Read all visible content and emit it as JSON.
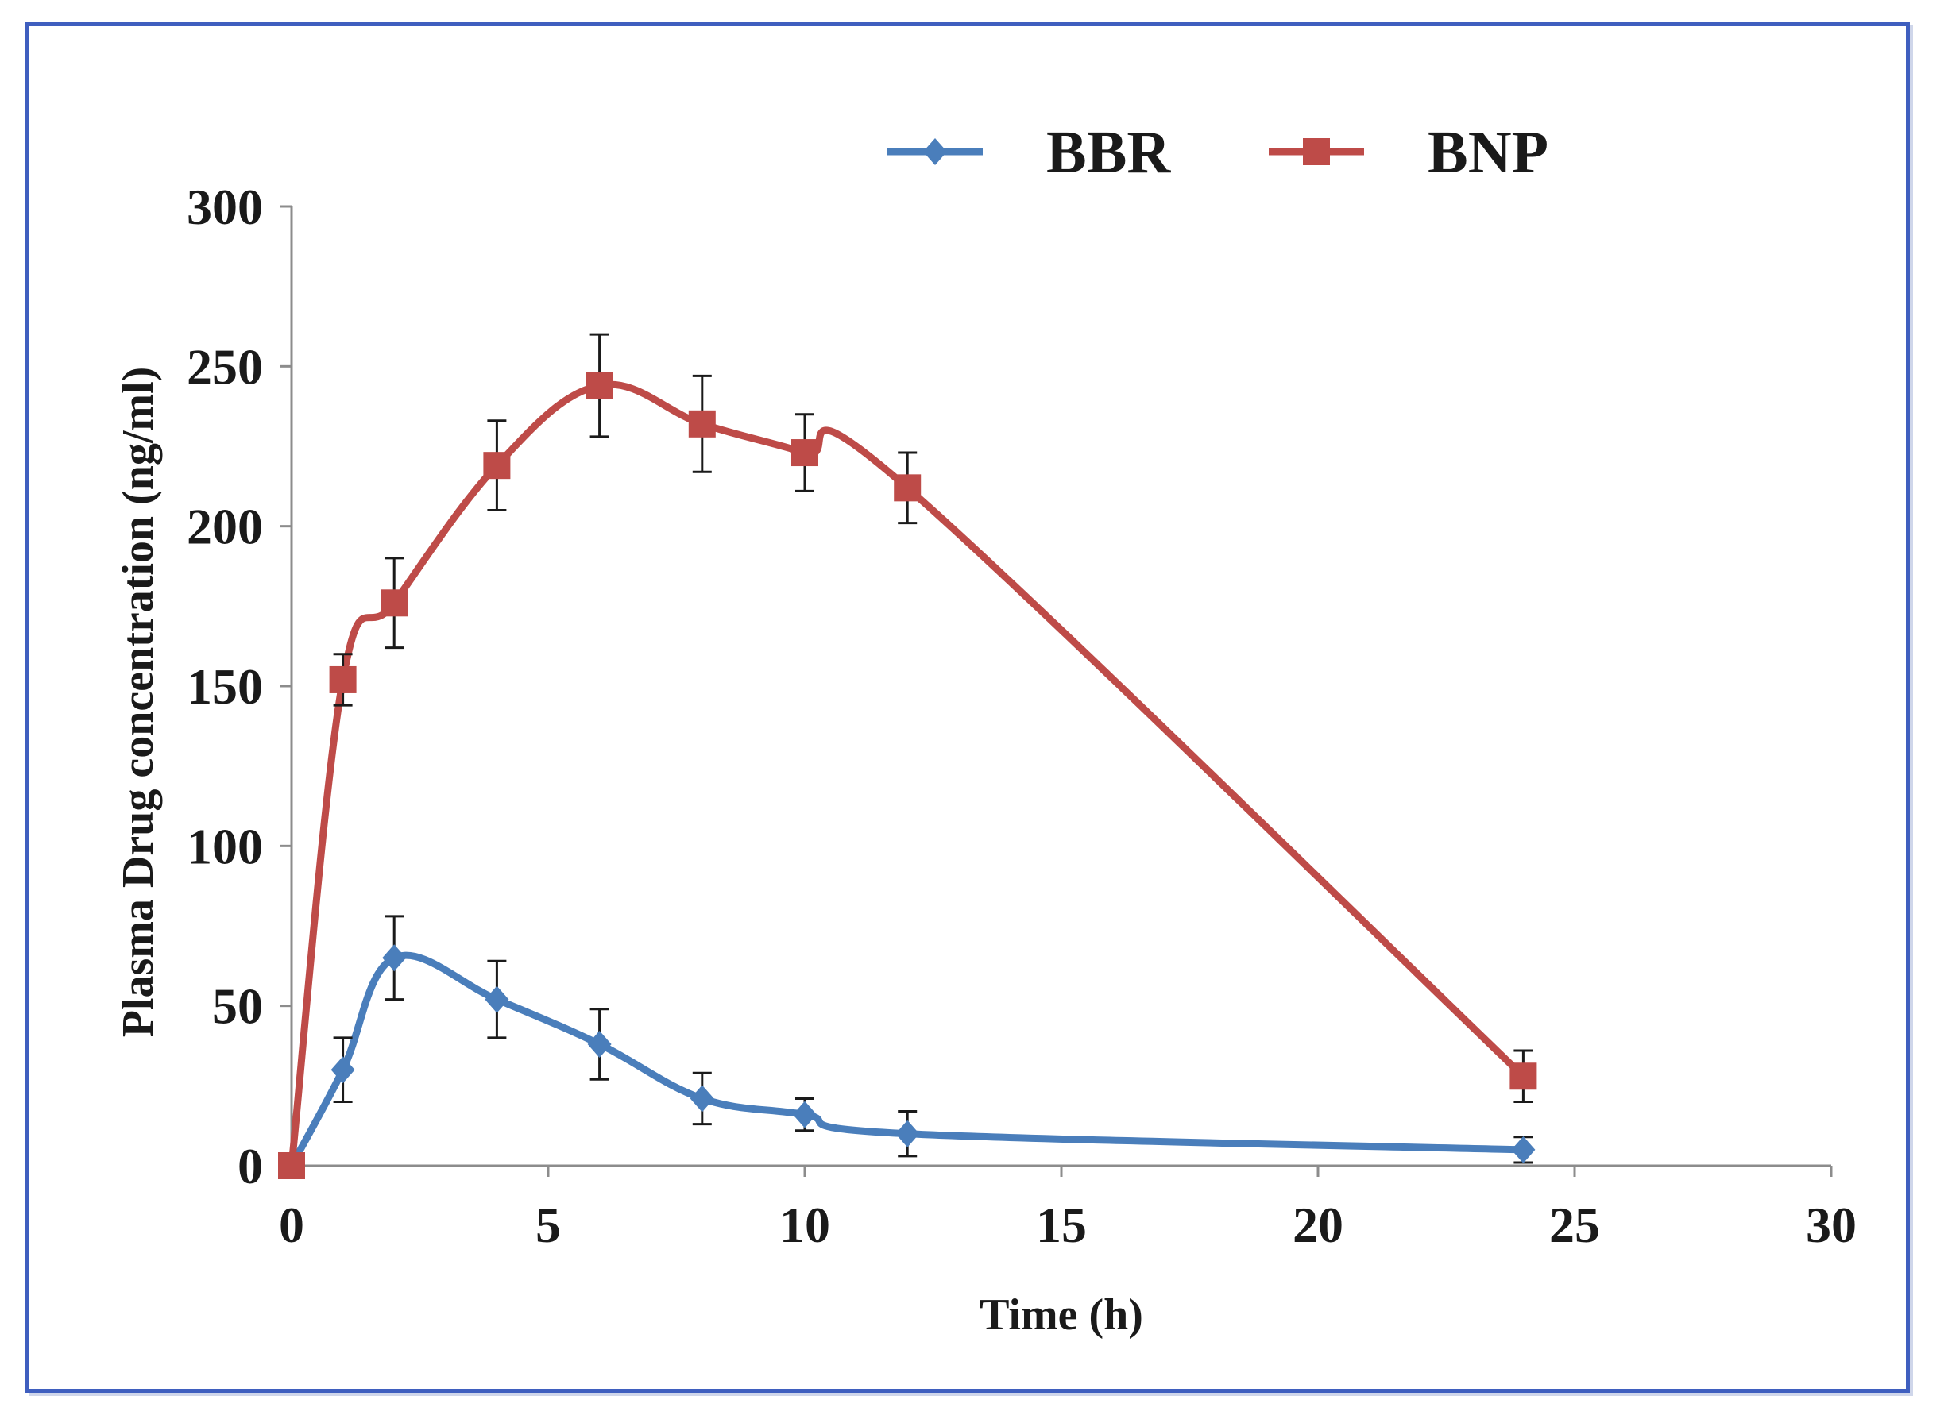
{
  "chart_data": {
    "type": "line",
    "title": "",
    "xlabel": "Time (h)",
    "ylabel": "Plasma Drug concentration (ng/ml)",
    "xlim": [
      0,
      30
    ],
    "ylim": [
      0,
      300
    ],
    "xticks": [
      0,
      5,
      10,
      15,
      20,
      25,
      30
    ],
    "yticks": [
      0,
      50,
      100,
      150,
      200,
      250,
      300
    ],
    "grid": false,
    "legend_position": "top-center",
    "series": [
      {
        "name": "BBR",
        "color": "#4a7ebb",
        "marker": "diamond",
        "x": [
          0,
          1,
          2,
          4,
          6,
          8,
          10,
          12,
          24
        ],
        "y": [
          0,
          30,
          65,
          52,
          38,
          21,
          16,
          10,
          5
        ],
        "error": [
          0,
          10,
          13,
          12,
          11,
          8,
          5,
          7,
          4
        ]
      },
      {
        "name": "BNP",
        "color": "#be4b48",
        "marker": "square",
        "x": [
          0,
          1,
          2,
          4,
          6,
          8,
          10,
          12,
          24
        ],
        "y": [
          0,
          152,
          176,
          219,
          244,
          232,
          223,
          212,
          28
        ],
        "error": [
          0,
          8,
          14,
          14,
          16,
          15,
          12,
          11,
          8
        ]
      }
    ]
  }
}
